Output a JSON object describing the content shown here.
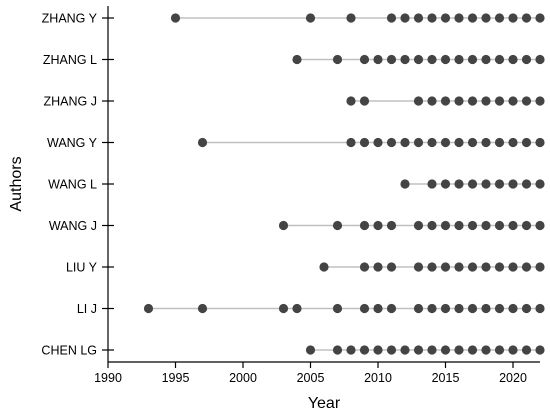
{
  "chart_data": {
    "type": "scatter",
    "subtype": "timeline-dot-plot",
    "title": "",
    "xlabel": "Year",
    "ylabel": "Authors",
    "xlim": [
      1990,
      2022
    ],
    "xticks": [
      1990,
      1995,
      2000,
      2005,
      2010,
      2015,
      2020
    ],
    "grid": false,
    "categories": [
      "ZHANG Y",
      "ZHANG L",
      "ZHANG J",
      "WANG Y",
      "WANG L",
      "WANG J",
      "LIU Y",
      "LI J",
      "CHEN LG"
    ],
    "series": [
      {
        "author": "ZHANG Y",
        "years": [
          1995,
          2005,
          2008,
          2011,
          2012,
          2013,
          2014,
          2015,
          2016,
          2017,
          2018,
          2019,
          2020,
          2021,
          2022
        ]
      },
      {
        "author": "ZHANG L",
        "years": [
          2004,
          2007,
          2009,
          2010,
          2011,
          2012,
          2013,
          2014,
          2015,
          2016,
          2017,
          2018,
          2019,
          2020,
          2021,
          2022
        ]
      },
      {
        "author": "ZHANG J",
        "years": [
          2008,
          2009,
          2013,
          2014,
          2015,
          2016,
          2017,
          2018,
          2019,
          2020,
          2021,
          2022
        ]
      },
      {
        "author": "WANG Y",
        "years": [
          1997,
          2008,
          2009,
          2010,
          2011,
          2012,
          2013,
          2014,
          2015,
          2016,
          2017,
          2018,
          2019,
          2020,
          2021,
          2022
        ]
      },
      {
        "author": "WANG L",
        "years": [
          2012,
          2014,
          2015,
          2016,
          2017,
          2018,
          2019,
          2020,
          2021,
          2022
        ]
      },
      {
        "author": "WANG J",
        "years": [
          2003,
          2007,
          2009,
          2010,
          2011,
          2013,
          2014,
          2015,
          2016,
          2017,
          2018,
          2019,
          2020,
          2021,
          2022
        ]
      },
      {
        "author": "LIU Y",
        "years": [
          2006,
          2009,
          2010,
          2011,
          2013,
          2014,
          2015,
          2016,
          2017,
          2018,
          2019,
          2020,
          2021,
          2022
        ]
      },
      {
        "author": "LI J",
        "years": [
          1993,
          1997,
          2003,
          2004,
          2007,
          2009,
          2010,
          2011,
          2013,
          2014,
          2015,
          2016,
          2017,
          2018,
          2019,
          2020,
          2021,
          2022
        ]
      },
      {
        "author": "CHEN LG",
        "years": [
          2005,
          2007,
          2008,
          2009,
          2010,
          2011,
          2012,
          2013,
          2014,
          2015,
          2016,
          2017,
          2018,
          2019,
          2020,
          2021,
          2022
        ]
      }
    ],
    "colors": {
      "dot": "#444444",
      "line": "#c0c0c0",
      "axis": "#000000"
    }
  }
}
